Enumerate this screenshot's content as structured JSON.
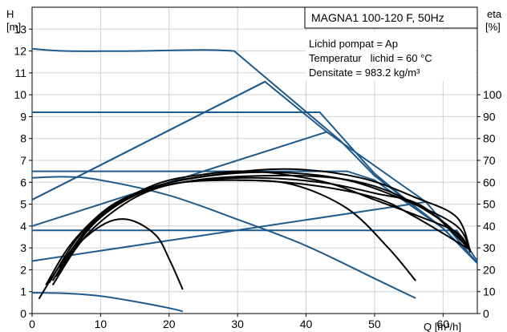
{
  "chart_data": {
    "type": "line",
    "title": "MAGNA1 100-120 F, 50Hz",
    "y_left_label": [
      "H",
      "[m]"
    ],
    "y_right_label": [
      "eta",
      "[%]"
    ],
    "x_label": "Q [m³/h]",
    "x_ticks": [
      0,
      10,
      20,
      30,
      40,
      50,
      60
    ],
    "y_left_ticks": [
      0,
      1,
      2,
      3,
      4,
      5,
      6,
      7,
      8,
      9,
      10,
      11,
      12,
      13
    ],
    "y_right_ticks": [
      0,
      10,
      20,
      30,
      40,
      50,
      60,
      70,
      80,
      90,
      100
    ],
    "xlim": [
      0,
      65
    ],
    "ylim_left": [
      0,
      14
    ],
    "ylim_right": [
      0,
      140
    ],
    "grid": true,
    "info_lines": [
      "Lichid pompat = Ap",
      "Temperatur   lichid = 60 °C",
      "Densitate = 983.2 kg/m³"
    ],
    "colors": {
      "pump_curves": "#1f5a8c",
      "efficiency_curves": "#000000",
      "grid": "#d0d0d0"
    },
    "head_curves": [
      {
        "points": [
          [
            0,
            12.1
          ],
          [
            5,
            12.0
          ],
          [
            15,
            12.0
          ],
          [
            25,
            12.05
          ],
          [
            29.5,
            12.0
          ],
          [
            45,
            7.9
          ],
          [
            50,
            6.3
          ],
          [
            55,
            5.1
          ],
          [
            60,
            3.9
          ],
          [
            65,
            2.3
          ]
        ]
      },
      {
        "points": [
          [
            0,
            9.2
          ],
          [
            42,
            9.2
          ],
          [
            50,
            6.4
          ],
          [
            55,
            5.1
          ],
          [
            60,
            3.9
          ],
          [
            65,
            2.3
          ]
        ]
      },
      {
        "points": [
          [
            0,
            6.5
          ],
          [
            46,
            6.5
          ],
          [
            50,
            6.1
          ],
          [
            55,
            5.0
          ],
          [
            60,
            3.9
          ],
          [
            65,
            2.3
          ]
        ]
      },
      {
        "points": [
          [
            0,
            3.8
          ],
          [
            62,
            3.8
          ],
          [
            65,
            2.4
          ]
        ]
      },
      {
        "points": [
          [
            0,
            6.2
          ],
          [
            5,
            6.25
          ],
          [
            10,
            6.1
          ],
          [
            20,
            5.4
          ],
          [
            30,
            4.3
          ],
          [
            40,
            3.1
          ],
          [
            50,
            1.6
          ],
          [
            56,
            0.7
          ]
        ]
      },
      {
        "points": [
          [
            0,
            0.95
          ],
          [
            5,
            0.92
          ],
          [
            10,
            0.8
          ],
          [
            15,
            0.55
          ],
          [
            20,
            0.25
          ],
          [
            22,
            0.1
          ]
        ]
      }
    ],
    "max_curve": [
      [
        0,
        5.2
      ],
      [
        34,
        10.6
      ],
      [
        43,
        8.3
      ],
      [
        57.5,
        5.1
      ],
      [
        65,
        2.3
      ]
    ],
    "system_lines": [
      {
        "points": [
          [
            0,
            5.2
          ],
          [
            34,
            10.6
          ]
        ]
      },
      {
        "points": [
          [
            0,
            4.0
          ],
          [
            43,
            8.3
          ]
        ]
      },
      {
        "points": [
          [
            0,
            2.4
          ],
          [
            57.5,
            5.1
          ]
        ]
      }
    ],
    "efficiency_curves": [
      {
        "points": [
          [
            1,
            6.7
          ],
          [
            5,
            26
          ],
          [
            10,
            40
          ],
          [
            14,
            43
          ],
          [
            18,
            36
          ],
          [
            20,
            25
          ],
          [
            22,
            11
          ]
        ]
      },
      {
        "points": [
          [
            2,
            13
          ],
          [
            6,
            33
          ],
          [
            12,
            50
          ],
          [
            20,
            59
          ],
          [
            30,
            61
          ],
          [
            40,
            59
          ],
          [
            50,
            53
          ],
          [
            56,
            44
          ],
          [
            64,
            29
          ]
        ]
      },
      {
        "points": [
          [
            2.5,
            14
          ],
          [
            7,
            36
          ],
          [
            13,
            52
          ],
          [
            22,
            60
          ],
          [
            32,
            62
          ],
          [
            42,
            60
          ],
          [
            50,
            55
          ],
          [
            57,
            49
          ],
          [
            64,
            29
          ]
        ]
      },
      {
        "points": [
          [
            3,
            15
          ],
          [
            8,
            38
          ],
          [
            15,
            54
          ],
          [
            24,
            61
          ],
          [
            34,
            63
          ],
          [
            44,
            62
          ],
          [
            52,
            56
          ],
          [
            60,
            42
          ],
          [
            64,
            29
          ]
        ]
      },
      {
        "points": [
          [
            3.5,
            17
          ],
          [
            9,
            41
          ],
          [
            16,
            56
          ],
          [
            26,
            63
          ],
          [
            36,
            64.5
          ],
          [
            46,
            61
          ],
          [
            55,
            51
          ],
          [
            62,
            40
          ],
          [
            64,
            28
          ]
        ]
      },
      {
        "points": [
          [
            4,
            21
          ],
          [
            10,
            44
          ],
          [
            18,
            58
          ],
          [
            28,
            64
          ],
          [
            38,
            66
          ],
          [
            48,
            62
          ],
          [
            56,
            53
          ],
          [
            62,
            44
          ],
          [
            64,
            28
          ]
        ]
      },
      {
        "points": [
          [
            3,
            13
          ],
          [
            8,
            36
          ],
          [
            15,
            53
          ],
          [
            22,
            60
          ],
          [
            30,
            61
          ],
          [
            38,
            59
          ],
          [
            46,
            48
          ],
          [
            52,
            30
          ],
          [
            56,
            15
          ]
        ]
      },
      {
        "points": [
          [
            5,
            26
          ],
          [
            10,
            45
          ],
          [
            18,
            59
          ],
          [
            26,
            64
          ],
          [
            32,
            65
          ],
          [
            38,
            63
          ],
          [
            44,
            59
          ],
          [
            50,
            52
          ],
          [
            56,
            45
          ],
          [
            62,
            37
          ],
          [
            64,
            28
          ]
        ]
      }
    ]
  }
}
